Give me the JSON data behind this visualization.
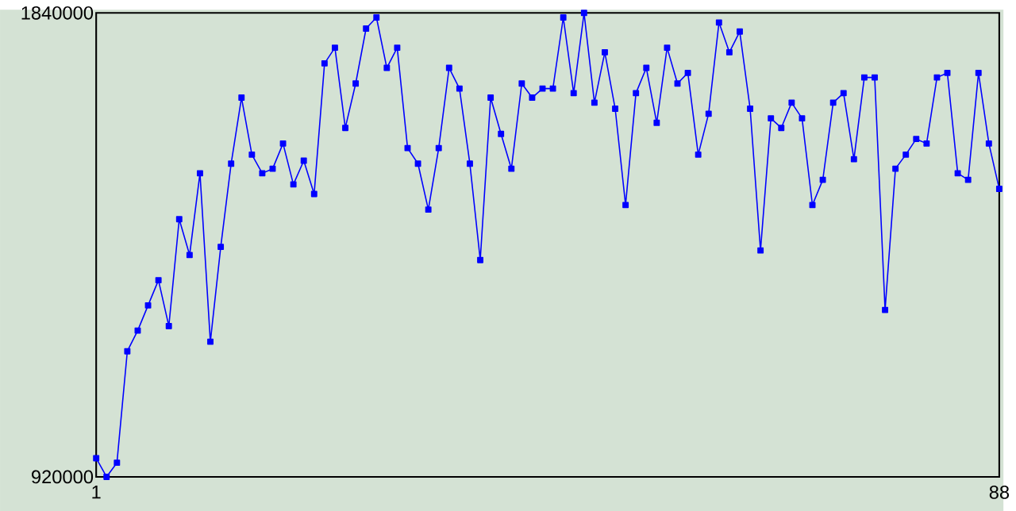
{
  "chart_data": {
    "type": "line",
    "color": "#0000ff",
    "marker": "square",
    "x": [
      1,
      2,
      3,
      4,
      5,
      6,
      7,
      8,
      9,
      10,
      11,
      12,
      13,
      14,
      15,
      16,
      17,
      18,
      19,
      20,
      21,
      22,
      23,
      24,
      25,
      26,
      27,
      28,
      29,
      30,
      31,
      32,
      33,
      34,
      35,
      36,
      37,
      38,
      39,
      40,
      41,
      42,
      43,
      44,
      45,
      46,
      47,
      48,
      49,
      50,
      51,
      52,
      53,
      54,
      55,
      56,
      57,
      58,
      59,
      60,
      61,
      62,
      63,
      64,
      65,
      66,
      67,
      68,
      69,
      70,
      71,
      72,
      73,
      74,
      75,
      76,
      77,
      78,
      79,
      80,
      81,
      82,
      83,
      84,
      85,
      86,
      87,
      88
    ],
    "values": [
      957000,
      920000,
      948000,
      1169000,
      1210000,
      1260000,
      1310000,
      1219000,
      1431000,
      1360000,
      1522000,
      1188000,
      1376000,
      1541000,
      1672000,
      1559000,
      1522000,
      1531000,
      1581000,
      1500000,
      1547000,
      1481000,
      1740000,
      1771000,
      1612000,
      1700000,
      1809000,
      1831000,
      1731000,
      1771000,
      1572000,
      1541000,
      1450000,
      1572000,
      1731000,
      1690000,
      1541000,
      1350000,
      1672000,
      1600000,
      1531000,
      1700000,
      1672000,
      1690000,
      1690000,
      1831000,
      1681000,
      1840000,
      1662000,
      1762000,
      1650000,
      1459000,
      1681000,
      1731000,
      1622000,
      1771000,
      1700000,
      1721000,
      1559000,
      1640000,
      1821000,
      1762000,
      1803000,
      1650000,
      1369000,
      1631000,
      1612000,
      1662000,
      1631000,
      1459000,
      1509000,
      1662000,
      1681000,
      1550000,
      1712000,
      1712000,
      1251000,
      1531000,
      1559000,
      1590000,
      1581000,
      1712000,
      1721000,
      1522000,
      1509000,
      1721000,
      1581000,
      1491000
    ],
    "xlim": [
      1,
      88
    ],
    "ylim": [
      920000,
      1840000
    ],
    "xticks": [
      1,
      88
    ],
    "yticks": [
      920000,
      1840000
    ]
  }
}
